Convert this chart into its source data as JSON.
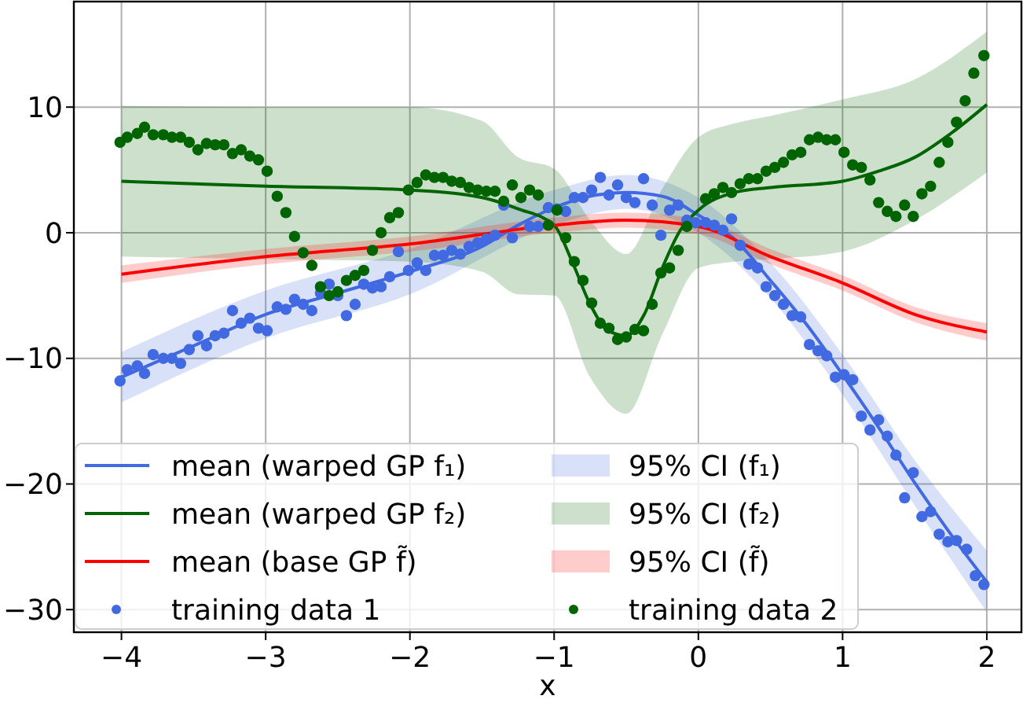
{
  "chart_data": {
    "type": "line",
    "xlabel": "x",
    "xlim": [
      -4.33,
      2.24
    ],
    "ylim": [
      -31.8,
      18.4
    ],
    "xticks": [
      {
        "value": -4,
        "label": "−4"
      },
      {
        "value": -3,
        "label": "−3"
      },
      {
        "value": -2,
        "label": "−2"
      },
      {
        "value": -1,
        "label": "−1"
      },
      0,
      1,
      2
    ],
    "yticks": [
      {
        "value": -30,
        "label": "−30"
      },
      {
        "value": -20,
        "label": "−20"
      },
      {
        "value": -10,
        "label": "−10"
      },
      0,
      10
    ],
    "grid": true,
    "legend": "lower left",
    "series": [
      {
        "name": "mean (warped GP f₁)",
        "color": "#4169e1",
        "x": [
          -4,
          -3.5,
          -3,
          -2.5,
          -2,
          -1.5,
          -1.25,
          -1,
          -0.75,
          -0.5,
          -0.25,
          0,
          0.25,
          0.5,
          0.75,
          1,
          1.25,
          1.5,
          1.75,
          2
        ],
        "values": [
          -11.5,
          -9,
          -6.5,
          -4.8,
          -3.1,
          -1.1,
          0.6,
          2.0,
          2.9,
          3.2,
          2.9,
          1.4,
          -0.5,
          -3.8,
          -7.3,
          -11.3,
          -15.5,
          -19.9,
          -24,
          -27.8
        ]
      },
      {
        "name": "mean (warped GP f₂)",
        "color": "#006400",
        "x": [
          -4,
          -3,
          -2,
          -1.5,
          -1.25,
          -1,
          -0.875,
          -0.75,
          -0.625,
          -0.5,
          -0.375,
          -0.25,
          -0.125,
          0,
          0.25,
          0.5,
          1,
          1.25,
          1.5,
          1.75,
          2
        ],
        "values": [
          4.1,
          3.7,
          3.4,
          2.8,
          1.9,
          0.6,
          -2.3,
          -5.7,
          -7.8,
          -8.2,
          -6.5,
          -2.8,
          0.2,
          1.8,
          3.2,
          3.6,
          4.1,
          4.9,
          6,
          7.9,
          10.2
        ]
      },
      {
        "name": "mean (base GP f̃)",
        "color": "#ff0000",
        "x": [
          -4,
          -3,
          -2,
          -1,
          -0.5,
          0,
          0.5,
          1,
          1.5,
          2
        ],
        "values": [
          -3.3,
          -1.9,
          -0.9,
          0.6,
          1.0,
          0.5,
          -1.9,
          -4,
          -6.5,
          -7.9
        ]
      },
      {
        "type": "scatter",
        "name": "training data 1",
        "color": "#4169e1",
        "marker": "circle",
        "x": [
          -4.01,
          -3.96,
          -3.89,
          -3.84,
          -3.78,
          -3.71,
          -3.65,
          -3.59,
          -3.53,
          -3.47,
          -3.41,
          -3.35,
          -3.29,
          -3.23,
          -3.17,
          -3.11,
          -3.05,
          -2.99,
          -2.92,
          -2.86,
          -2.8,
          -2.74,
          -2.68,
          -2.62,
          -2.56,
          -2.5,
          -2.44,
          -2.38,
          -2.32,
          -2.26,
          -2.2,
          -2.14,
          -2.08,
          -2.01,
          -1.95,
          -1.89,
          -1.83,
          -1.77,
          -1.71,
          -1.65,
          -1.59,
          -1.53,
          -1.47,
          -1.41,
          -1.35,
          -1.29,
          -1.17,
          -1.11,
          -1.04,
          -0.98,
          -0.92,
          -0.86,
          -0.8,
          -0.74,
          -0.68,
          -0.62,
          -0.56,
          -0.5,
          -0.44,
          -0.38,
          -0.32,
          -0.26,
          -0.2,
          -0.14,
          -0.08,
          -0.02,
          0.05,
          0.11,
          0.17,
          0.23,
          0.29,
          0.35,
          0.41,
          0.47,
          0.53,
          0.59,
          0.65,
          0.71,
          0.77,
          0.83,
          0.89,
          0.95,
          1.01,
          1.07,
          1.13,
          1.19,
          1.25,
          1.31,
          1.37,
          1.43,
          1.49,
          1.55,
          1.61,
          1.67,
          1.73,
          1.79,
          1.86,
          1.92,
          1.98
        ],
        "values": [
          -11.8,
          -10.9,
          -10.6,
          -11.2,
          -9.7,
          -10,
          -10,
          -10.4,
          -9.3,
          -8.2,
          -9,
          -8.2,
          -8,
          -6.2,
          -7.2,
          -6.8,
          -7.6,
          -7.8,
          -5.9,
          -6.1,
          -5.3,
          -5.7,
          -6.2,
          -4.8,
          -4.1,
          -5,
          -6.6,
          -5.7,
          -4.1,
          -4.4,
          -4.3,
          -3.5,
          -1.5,
          -3,
          -2.4,
          -3,
          -1.8,
          -1.8,
          -1.4,
          -1.7,
          -1.1,
          -0.8,
          -0.5,
          -0.2,
          2.2,
          -0.4,
          0.5,
          0.5,
          2,
          1.9,
          1.7,
          2.8,
          2.8,
          3.4,
          4.4,
          3,
          3.8,
          2.8,
          2.4,
          4.3,
          2.2,
          -0.2,
          1.8,
          2.2,
          1,
          0.8,
          0.8,
          0.6,
          0.2,
          1.1,
          -1,
          -2.5,
          -2.8,
          -4.3,
          -5,
          -5.7,
          -6.6,
          -6.7,
          -8.9,
          -9.4,
          -9.8,
          -11.5,
          -11.3,
          -11.7,
          -14.6,
          -15.7,
          -14.9,
          -16.2,
          -17.7,
          -21.1,
          -19.1,
          -22.6,
          -22.2,
          -24,
          -24.6,
          -24.5,
          -25.2,
          -27.3,
          -28
        ]
      },
      {
        "name": "95% CI (f₁)",
        "color": "#4169e1",
        "x": [
          -4,
          -3,
          -2,
          -1,
          -0.5,
          0,
          0.5,
          1,
          1.5,
          2
        ],
        "values": [
          null,
          null,
          null,
          null,
          null,
          null,
          null,
          null,
          null,
          null
        ],
        "lower": [
          -13.5,
          -8.4,
          -4.9,
          0.6,
          1.9,
          0,
          -5.2,
          -12.9,
          -21.7,
          -30.2
        ],
        "upper": [
          -9.5,
          -4.6,
          -1.3,
          3.4,
          4.6,
          2.8,
          -2.4,
          -9.7,
          -18.1,
          -25.3
        ]
      },
      {
        "name": "95% CI (f₂)",
        "color": "#006400",
        "x": [
          -4,
          -3,
          -2,
          -1.5,
          -1.25,
          -1,
          -0.75,
          -0.5,
          -0.25,
          0,
          0.25,
          0.5,
          1,
          1.5,
          2
        ],
        "values": [
          null,
          null,
          null,
          null,
          null,
          null,
          null,
          null,
          null,
          null,
          null,
          null,
          null,
          null,
          null
        ],
        "lower": [
          -1.9,
          -2.1,
          -2.3,
          -3.1,
          -4.9,
          -5,
          -11.5,
          -14.4,
          -8.1,
          -2.8,
          -2.3,
          -2.1,
          -1.5,
          1,
          4.8
        ],
        "upper": [
          10.1,
          10,
          10,
          8.9,
          6,
          5.1,
          1,
          -1.7,
          3.5,
          7.6,
          8.7,
          9.3,
          10.6,
          12.2,
          16
        ]
      },
      {
        "name": "95% CI (f̃)",
        "color": "#ff0000",
        "x": [
          -4,
          -3,
          -2,
          -1,
          -0.5,
          0,
          0.5,
          1,
          1.5,
          2
        ],
        "values": [
          null,
          null,
          null,
          null,
          null,
          null,
          null,
          null,
          null,
          null
        ],
        "lower": [
          -4,
          -2.5,
          -1.5,
          0,
          0.4,
          -0.1,
          -2.5,
          -4.6,
          -7.1,
          -8.6
        ],
        "upper": [
          -2.6,
          -1.3,
          -0.3,
          1.2,
          1.6,
          1.1,
          -1.3,
          -3.4,
          -5.9,
          -7.2
        ]
      },
      {
        "type": "scatter",
        "name": "training data 2",
        "color": "#006400",
        "marker": "circle",
        "x": [
          -4.01,
          -3.96,
          -3.89,
          -3.84,
          -3.78,
          -3.71,
          -3.65,
          -3.59,
          -3.53,
          -3.47,
          -3.41,
          -3.35,
          -3.29,
          -3.23,
          -3.17,
          -3.11,
          -3.05,
          -2.99,
          -2.92,
          -2.86,
          -2.8,
          -2.74,
          -2.68,
          -2.62,
          -2.56,
          -2.5,
          -2.44,
          -2.38,
          -2.32,
          -2.26,
          -2.2,
          -2.14,
          -2.08,
          -2.01,
          -1.95,
          -1.89,
          -1.83,
          -1.77,
          -1.71,
          -1.65,
          -1.59,
          -1.53,
          -1.47,
          -1.41,
          -1.35,
          -1.29,
          -1.23,
          -1.17,
          -1.11,
          -1.04,
          -0.98,
          -0.92,
          -0.86,
          -0.8,
          -0.74,
          -0.68,
          -0.62,
          -0.56,
          -0.5,
          -0.44,
          -0.38,
          -0.32,
          -0.26,
          -0.2,
          -0.14,
          -0.08,
          0.05,
          0.11,
          0.17,
          0.23,
          0.29,
          0.35,
          0.41,
          0.47,
          0.53,
          0.59,
          0.65,
          0.71,
          0.77,
          0.83,
          0.89,
          0.95,
          1.01,
          1.07,
          1.13,
          1.19,
          1.25,
          1.31,
          1.37,
          1.43,
          1.49,
          1.55,
          1.61,
          1.67,
          1.73,
          1.79,
          1.85,
          1.91,
          1.98
        ],
        "values": [
          7.2,
          7.6,
          7.9,
          8.4,
          7.8,
          7.8,
          7.6,
          7.6,
          7.2,
          6.6,
          7.1,
          7,
          7,
          6.3,
          6.6,
          6.1,
          5.8,
          4.9,
          2.9,
          1.6,
          -0.3,
          -1.6,
          -2.6,
          -4.3,
          -5,
          -4.7,
          -3.8,
          -3.4,
          -3,
          -1.4,
          0,
          1.2,
          1.6,
          3.4,
          4,
          4.6,
          4.4,
          4.4,
          4.1,
          4,
          3.6,
          3.4,
          3.3,
          3.3,
          2.5,
          3.8,
          2.8,
          3.4,
          3,
          0.6,
          1.8,
          -0.4,
          -2.3,
          -3.8,
          -5.6,
          -7.2,
          -7.6,
          -8.5,
          -8.3,
          -7.7,
          -7.8,
          -5.7,
          -3.2,
          -2.8,
          -1.4,
          0.5,
          2.7,
          3.1,
          3.6,
          3.2,
          3.9,
          4.3,
          4.3,
          4.9,
          5.2,
          5.6,
          6.2,
          6.4,
          7.4,
          7.6,
          7.4,
          7.4,
          6.4,
          5.4,
          5.2,
          4.2,
          2.4,
          1.7,
          1.3,
          2.2,
          1.3,
          3.1,
          3.7,
          5.6,
          7.2,
          8.8,
          10.5,
          12.7,
          14.1
        ]
      }
    ]
  }
}
